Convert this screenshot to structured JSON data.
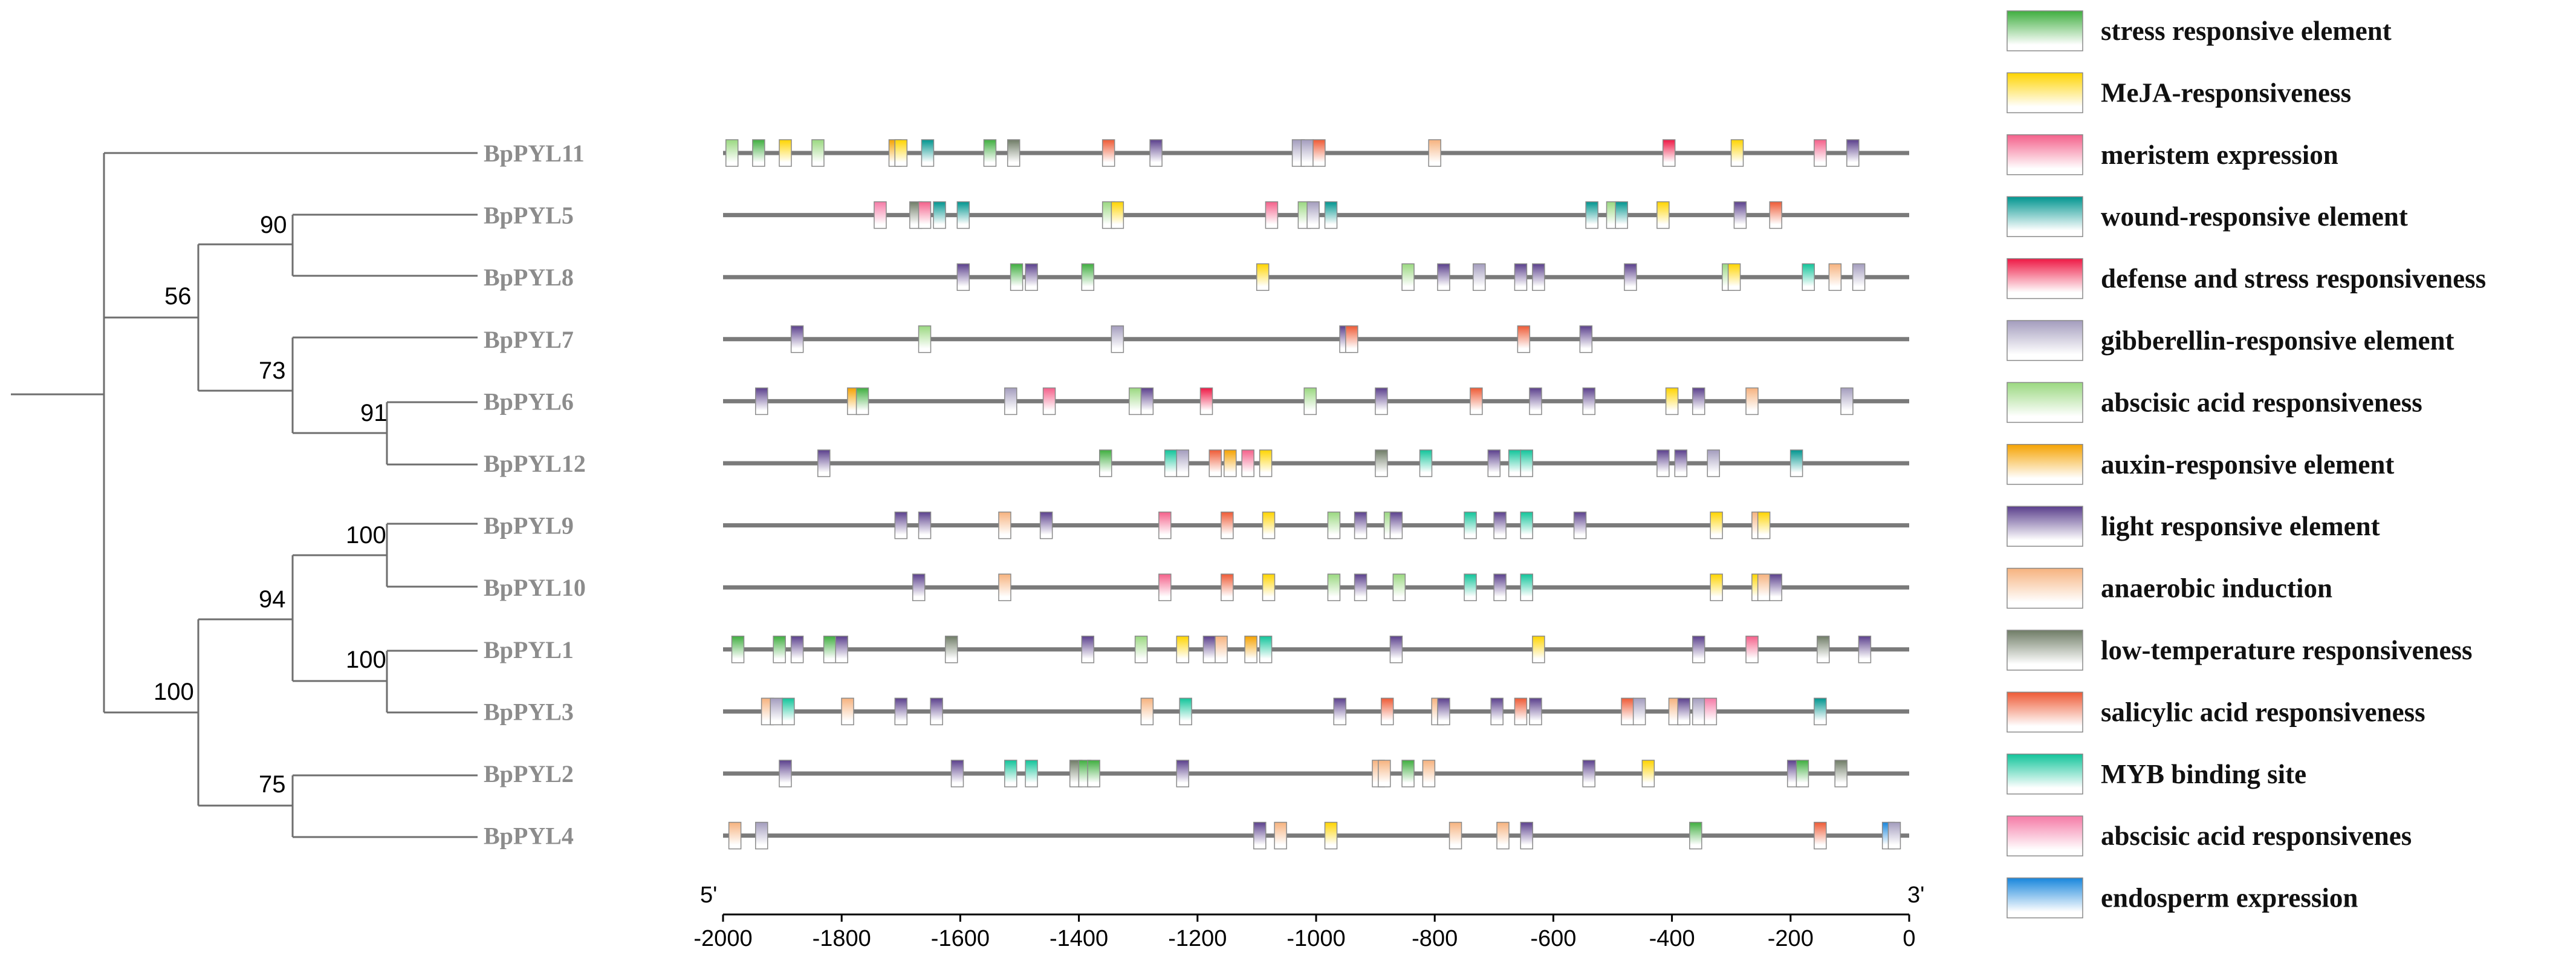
{
  "chart_data": {
    "type": "diagram",
    "title": "",
    "axis": {
      "range": [
        -2000,
        0
      ],
      "ticks": [
        -2000,
        -1800,
        -1600,
        -1400,
        -1200,
        -1000,
        -800,
        -600,
        -400,
        -200,
        0
      ],
      "tick_labels": [
        "-2000",
        "-1800",
        "-1600",
        "-1400",
        "-1200",
        "-1000",
        "-800",
        "-600",
        "-400",
        "-200",
        "0"
      ],
      "left_end_label": "5'",
      "right_end_label": "3'"
    },
    "tree": {
      "bootstrap_values": [
        "90",
        "56",
        "73",
        "91",
        "100",
        "94",
        "100",
        "100",
        "75"
      ]
    },
    "legend": [
      {
        "name": "stress responsive element",
        "color": "#3fae3f"
      },
      {
        "name": "MeJA-responsiveness",
        "color": "#ffd400"
      },
      {
        "name": "meristem expression",
        "color": "#f4608a"
      },
      {
        "name": "wound-responsive element",
        "color": "#00958f"
      },
      {
        "name": "defense and stress responsiveness",
        "color": "#ee1844"
      },
      {
        "name": "gibberellin-responsive element",
        "color": "#a39cbd"
      },
      {
        "name": "abscisic acid responsiveness",
        "color": "#9ad880"
      },
      {
        "name": "auxin-responsive element",
        "color": "#f5a200"
      },
      {
        "name": "light responsive element",
        "color": "#5a3f8c"
      },
      {
        "name": "anaerobic induction",
        "color": "#f6b27e"
      },
      {
        "name": "low-temperature responsiveness",
        "color": "#6f7c66"
      },
      {
        "name": "salicylic acid responsiveness",
        "color": "#ee5a35"
      },
      {
        "name": "MYB binding site",
        "color": "#11c49a"
      },
      {
        "name": "abscisic acid responsivenes",
        "color": "#f57aa6"
      },
      {
        "name": "endosperm expression",
        "color": "#1786dc"
      }
    ],
    "genes": [
      {
        "name": "BpPYL11",
        "elements": [
          [
            -1985,
            6
          ],
          [
            -1940,
            0
          ],
          [
            -1895,
            1
          ],
          [
            -1840,
            6
          ],
          [
            -1710,
            7
          ],
          [
            -1700,
            1
          ],
          [
            -1655,
            3
          ],
          [
            -1550,
            0
          ],
          [
            -1510,
            10
          ],
          [
            -1350,
            11
          ],
          [
            -1270,
            8
          ],
          [
            -1030,
            5
          ],
          [
            -1015,
            5
          ],
          [
            -995,
            11
          ],
          [
            -800,
            9
          ],
          [
            -405,
            4
          ],
          [
            -290,
            1
          ],
          [
            -150,
            2
          ],
          [
            -95,
            8
          ]
        ]
      },
      {
        "name": "BpPYL5",
        "elements": [
          [
            -1735,
            13
          ],
          [
            -1675,
            10
          ],
          [
            -1660,
            2
          ],
          [
            -1635,
            3
          ],
          [
            -1595,
            3
          ],
          [
            -1350,
            6
          ],
          [
            -1335,
            1
          ],
          [
            -1075,
            2
          ],
          [
            -1020,
            6
          ],
          [
            -1005,
            5
          ],
          [
            -975,
            3
          ],
          [
            -535,
            3
          ],
          [
            -500,
            6
          ],
          [
            -485,
            3
          ],
          [
            -415,
            1
          ],
          [
            -285,
            8
          ],
          [
            -225,
            11
          ]
        ]
      },
      {
        "name": "BpPYL8",
        "elements": [
          [
            -1595,
            8
          ],
          [
            -1505,
            0
          ],
          [
            -1480,
            8
          ],
          [
            -1385,
            0
          ],
          [
            -1090,
            1
          ],
          [
            -845,
            6
          ],
          [
            -785,
            8
          ],
          [
            -725,
            5
          ],
          [
            -655,
            8
          ],
          [
            -625,
            8
          ],
          [
            -470,
            8
          ],
          [
            -305,
            6
          ],
          [
            -295,
            1
          ],
          [
            -170,
            12
          ],
          [
            -125,
            9
          ],
          [
            -85,
            5
          ]
        ]
      },
      {
        "name": "BpPYL7",
        "elements": [
          [
            -1875,
            8
          ],
          [
            -1660,
            6
          ],
          [
            -1335,
            5
          ],
          [
            -950,
            8
          ],
          [
            -940,
            11
          ],
          [
            -650,
            11
          ],
          [
            -545,
            8
          ]
        ]
      },
      {
        "name": "BpPYL6",
        "elements": [
          [
            -1935,
            8
          ],
          [
            -1780,
            7
          ],
          [
            -1765,
            0
          ],
          [
            -1515,
            5
          ],
          [
            -1450,
            2
          ],
          [
            -1305,
            6
          ],
          [
            -1285,
            8
          ],
          [
            -1185,
            4
          ],
          [
            -1010,
            6
          ],
          [
            -890,
            8
          ],
          [
            -730,
            11
          ],
          [
            -630,
            8
          ],
          [
            -540,
            8
          ],
          [
            -400,
            1
          ],
          [
            -355,
            8
          ],
          [
            -265,
            9
          ],
          [
            -105,
            5
          ]
        ]
      },
      {
        "name": "BpPYL12",
        "elements": [
          [
            -1830,
            8
          ],
          [
            -1355,
            0
          ],
          [
            -1245,
            12
          ],
          [
            -1225,
            5
          ],
          [
            -1170,
            11
          ],
          [
            -1145,
            7
          ],
          [
            -1115,
            2
          ],
          [
            -1085,
            1
          ],
          [
            -890,
            10
          ],
          [
            -815,
            12
          ],
          [
            -700,
            8
          ],
          [
            -665,
            12
          ],
          [
            -645,
            12
          ],
          [
            -415,
            8
          ],
          [
            -385,
            8
          ],
          [
            -330,
            5
          ],
          [
            -190,
            3
          ]
        ]
      },
      {
        "name": "BpPYL9",
        "elements": [
          [
            -1700,
            8
          ],
          [
            -1660,
            8
          ],
          [
            -1525,
            9
          ],
          [
            -1455,
            8
          ],
          [
            -1255,
            2
          ],
          [
            -1150,
            11
          ],
          [
            -1080,
            1
          ],
          [
            -970,
            6
          ],
          [
            -925,
            8
          ],
          [
            -875,
            6
          ],
          [
            -865,
            8
          ],
          [
            -740,
            12
          ],
          [
            -690,
            8
          ],
          [
            -645,
            12
          ],
          [
            -555,
            8
          ],
          [
            -325,
            1
          ],
          [
            -255,
            9
          ],
          [
            -245,
            1
          ]
        ]
      },
      {
        "name": "BpPYL10",
        "elements": [
          [
            -1670,
            8
          ],
          [
            -1525,
            9
          ],
          [
            -1255,
            2
          ],
          [
            -1150,
            11
          ],
          [
            -1080,
            1
          ],
          [
            -970,
            6
          ],
          [
            -925,
            8
          ],
          [
            -860,
            6
          ],
          [
            -740,
            12
          ],
          [
            -690,
            8
          ],
          [
            -645,
            12
          ],
          [
            -325,
            1
          ],
          [
            -255,
            1
          ],
          [
            -245,
            9
          ],
          [
            -225,
            8
          ]
        ]
      },
      {
        "name": "BpPYL1",
        "elements": [
          [
            -1975,
            0
          ],
          [
            -1905,
            0
          ],
          [
            -1875,
            8
          ],
          [
            -1820,
            0
          ],
          [
            -1800,
            8
          ],
          [
            -1615,
            10
          ],
          [
            -1385,
            8
          ],
          [
            -1295,
            6
          ],
          [
            -1225,
            1
          ],
          [
            -1180,
            8
          ],
          [
            -1160,
            9
          ],
          [
            -1110,
            7
          ],
          [
            -1085,
            12
          ],
          [
            -865,
            8
          ],
          [
            -625,
            1
          ],
          [
            -355,
            8
          ],
          [
            -265,
            2
          ],
          [
            -145,
            10
          ],
          [
            -75,
            8
          ]
        ]
      },
      {
        "name": "BpPYL3",
        "elements": [
          [
            -1925,
            9
          ],
          [
            -1910,
            5
          ],
          [
            -1890,
            12
          ],
          [
            -1790,
            9
          ],
          [
            -1700,
            8
          ],
          [
            -1640,
            8
          ],
          [
            -1285,
            9
          ],
          [
            -1220,
            12
          ],
          [
            -960,
            8
          ],
          [
            -880,
            11
          ],
          [
            -795,
            9
          ],
          [
            -785,
            8
          ],
          [
            -695,
            8
          ],
          [
            -655,
            11
          ],
          [
            -630,
            8
          ],
          [
            -475,
            11
          ],
          [
            -455,
            5
          ],
          [
            -395,
            9
          ],
          [
            -380,
            8
          ],
          [
            -355,
            5
          ],
          [
            -335,
            13
          ],
          [
            -150,
            3
          ]
        ]
      },
      {
        "name": "BpPYL2",
        "elements": [
          [
            -1895,
            8
          ],
          [
            -1605,
            8
          ],
          [
            -1515,
            12
          ],
          [
            -1480,
            12
          ],
          [
            -1405,
            10
          ],
          [
            -1390,
            0
          ],
          [
            -1375,
            0
          ],
          [
            -1225,
            8
          ],
          [
            -895,
            9
          ],
          [
            -885,
            9
          ],
          [
            -845,
            0
          ],
          [
            -810,
            9
          ],
          [
            -540,
            8
          ],
          [
            -440,
            1
          ],
          [
            -195,
            8
          ],
          [
            -180,
            0
          ],
          [
            -115,
            10
          ]
        ]
      },
      {
        "name": "BpPYL4",
        "elements": [
          [
            -1980,
            9
          ],
          [
            -1935,
            5
          ],
          [
            -1095,
            8
          ],
          [
            -1060,
            9
          ],
          [
            -975,
            1
          ],
          [
            -765,
            9
          ],
          [
            -685,
            9
          ],
          [
            -645,
            8
          ],
          [
            -360,
            0
          ],
          [
            -150,
            11
          ],
          [
            -35,
            14
          ],
          [
            -25,
            5
          ]
        ]
      }
    ]
  }
}
